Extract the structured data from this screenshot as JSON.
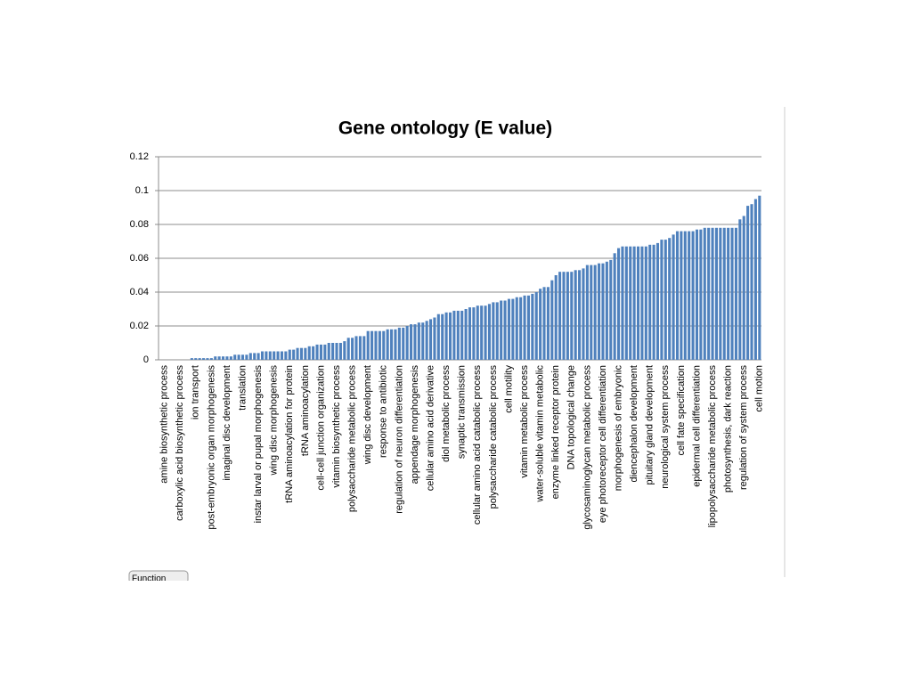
{
  "chart_data": {
    "type": "bar",
    "title": "Gene ontology (E value)",
    "categories": [
      null,
      "amine biosynthetic process",
      null,
      null,
      null,
      "carboxylic acid biosynthetic process",
      null,
      null,
      null,
      "ion transport",
      null,
      null,
      null,
      "post-embryonic organ morphogenesis",
      null,
      null,
      null,
      "imaginal disc development",
      null,
      null,
      null,
      "translation",
      null,
      null,
      null,
      "instar larval or pupal morphogenesis",
      null,
      null,
      null,
      "wing disc morphogenesis",
      null,
      null,
      null,
      "tRNA aminoacylation for protein",
      null,
      null,
      null,
      "tRNA aminoacylation",
      null,
      null,
      null,
      "cell-cell junction organization",
      null,
      null,
      null,
      "vitamin biosynthetic process",
      null,
      null,
      null,
      "polysaccharide metabolic process",
      null,
      null,
      null,
      "wing disc development",
      null,
      null,
      null,
      "response to antibiotic",
      null,
      null,
      null,
      "regulation of neuron differentiation",
      null,
      null,
      null,
      "appendage morphogenesis",
      null,
      null,
      null,
      "cellular amino acid derivative",
      null,
      null,
      null,
      "diol metabolic process",
      null,
      null,
      null,
      "synaptic transmission",
      null,
      null,
      null,
      "cellular amino acid catabolic process",
      null,
      null,
      null,
      "polysaccharide catabolic process",
      null,
      null,
      null,
      "cell motility",
      null,
      null,
      null,
      "vitamin metabolic process",
      null,
      null,
      null,
      "water-soluble vitamin metabolic",
      null,
      null,
      null,
      "enzyme linked receptor protein",
      null,
      null,
      null,
      "DNA topological change",
      null,
      null,
      null,
      "glycosaminoglycan metabolic process",
      null,
      null,
      null,
      "eye photoreceptor cell differentiation",
      null,
      null,
      null,
      "morphogenesis of embryonic",
      null,
      null,
      null,
      "diencephalon development",
      null,
      null,
      null,
      "pituitary gland development",
      null,
      null,
      null,
      "neurological system process",
      null,
      null,
      null,
      "cell fate specification",
      null,
      null,
      null,
      "epidermal cell differentiation",
      null,
      null,
      null,
      "lipopolysaccharide metabolic process",
      null,
      null,
      null,
      "photosynthesis, dark reaction",
      null,
      null,
      null,
      "regulation of system process",
      null,
      null,
      null,
      "cell motion"
    ],
    "values": [
      0,
      0,
      0,
      0,
      0,
      0,
      0,
      0,
      0.001,
      0.001,
      0.001,
      0.001,
      0.001,
      0.001,
      0.002,
      0.002,
      0.002,
      0.002,
      0.002,
      0.003,
      0.003,
      0.003,
      0.003,
      0.004,
      0.004,
      0.004,
      0.005,
      0.005,
      0.005,
      0.005,
      0.005,
      0.005,
      0.005,
      0.006,
      0.006,
      0.007,
      0.007,
      0.007,
      0.008,
      0.008,
      0.009,
      0.009,
      0.009,
      0.01,
      0.01,
      0.01,
      0.01,
      0.011,
      0.013,
      0.013,
      0.014,
      0.014,
      0.014,
      0.017,
      0.017,
      0.017,
      0.017,
      0.017,
      0.018,
      0.018,
      0.018,
      0.019,
      0.019,
      0.02,
      0.021,
      0.021,
      0.022,
      0.022,
      0.023,
      0.024,
      0.025,
      0.027,
      0.027,
      0.028,
      0.028,
      0.029,
      0.029,
      0.029,
      0.03,
      0.031,
      0.031,
      0.032,
      0.032,
      0.032,
      0.033,
      0.034,
      0.034,
      0.035,
      0.035,
      0.036,
      0.036,
      0.037,
      0.037,
      0.038,
      0.038,
      0.039,
      0.04,
      0.042,
      0.043,
      0.043,
      0.047,
      0.05,
      0.052,
      0.052,
      0.052,
      0.052,
      0.053,
      0.053,
      0.054,
      0.056,
      0.056,
      0.056,
      0.057,
      0.057,
      0.058,
      0.059,
      0.063,
      0.066,
      0.067,
      0.067,
      0.067,
      0.067,
      0.067,
      0.067,
      0.067,
      0.068,
      0.068,
      0.069,
      0.071,
      0.071,
      0.072,
      0.074,
      0.076,
      0.076,
      0.076,
      0.076,
      0.076,
      0.077,
      0.077,
      0.078,
      0.078,
      0.078,
      0.078,
      0.078,
      0.078,
      0.078,
      0.078,
      0.078,
      0.083,
      0.085,
      0.091,
      0.092,
      0.095,
      0.097
    ],
    "color": "#4f81bd",
    "ylim": [
      0,
      0.12
    ],
    "yticks": [
      0,
      0.02,
      0.04,
      0.06,
      0.08,
      0.1,
      0.12
    ],
    "grid": true
  },
  "filter_button": "Function"
}
